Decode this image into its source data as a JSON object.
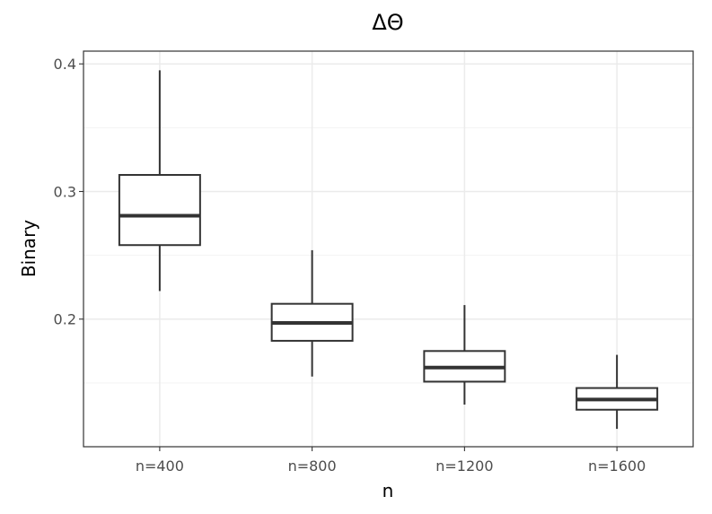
{
  "chart_data": {
    "type": "box",
    "title": "ΔΘ",
    "xlabel": "n",
    "ylabel": "Binary",
    "categories": [
      "n=400",
      "n=800",
      "n=1200",
      "n=1600"
    ],
    "y_ticks": [
      0.2,
      0.3,
      0.4
    ],
    "y_tick_labels": [
      "0.2",
      "0.3",
      "0.4"
    ],
    "ylim": [
      0.1,
      0.41
    ],
    "grid": true,
    "boxes": [
      {
        "category": "n=400",
        "whisker_low": 0.222,
        "q1": 0.258,
        "median": 0.281,
        "q3": 0.313,
        "whisker_high": 0.395
      },
      {
        "category": "n=800",
        "whisker_low": 0.155,
        "q1": 0.183,
        "median": 0.197,
        "q3": 0.212,
        "whisker_high": 0.254
      },
      {
        "category": "n=1200",
        "whisker_low": 0.133,
        "q1": 0.151,
        "median": 0.162,
        "q3": 0.175,
        "whisker_high": 0.211
      },
      {
        "category": "n=1600",
        "whisker_low": 0.114,
        "q1": 0.129,
        "median": 0.137,
        "q3": 0.146,
        "whisker_high": 0.172
      }
    ]
  }
}
